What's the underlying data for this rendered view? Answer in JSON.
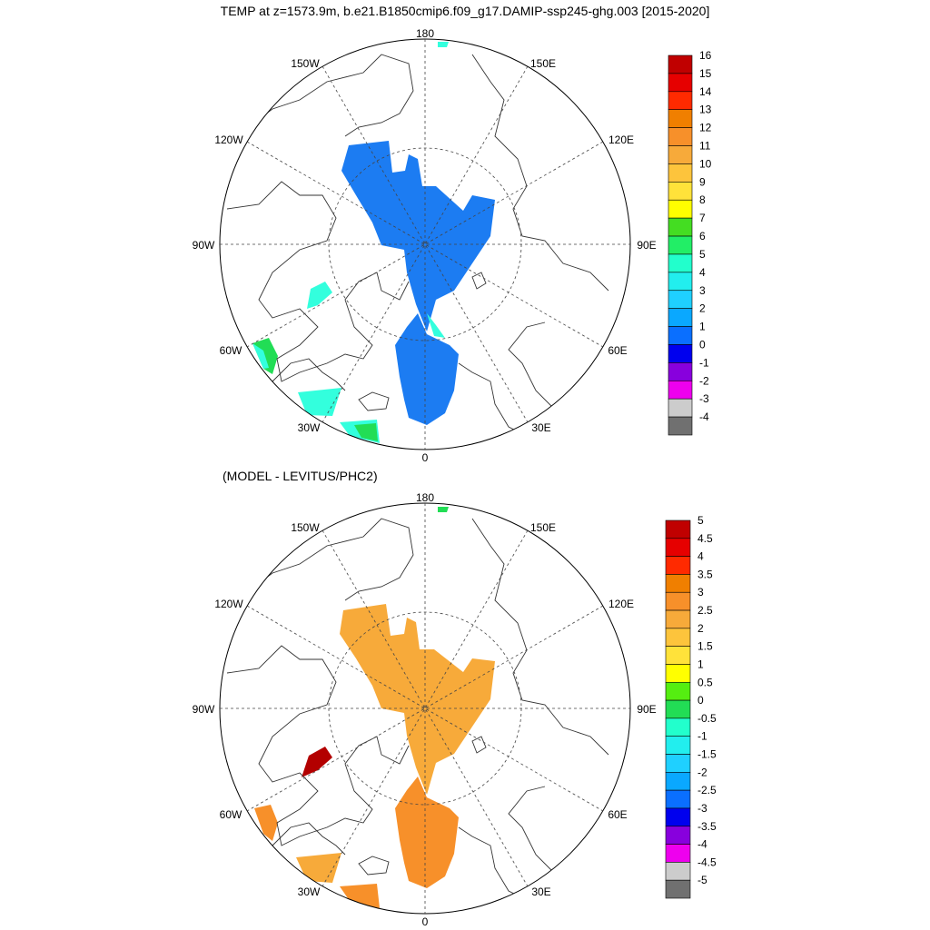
{
  "title": "TEMP at z=1573.9m, b.e21.B1850cmip6.f09_g17.DAMIP-ssp245-ghg.003 [2015-2020]",
  "subtitle": "(MODEL - LEVITUS/PHC2)",
  "map_labels": {
    "lon180": "180",
    "lon150w": "150W",
    "lon150e": "150E",
    "lon120w": "120W",
    "lon120e": "120E",
    "lon90w": "90W",
    "lon90e": "90E",
    "lon60w": "60W",
    "lon60e": "60E",
    "lon30w": "30W",
    "lon30e": "30E",
    "lon0": "0"
  },
  "top_colorbar": {
    "labels": [
      "16",
      "15",
      "14",
      "13",
      "12",
      "11",
      "10",
      "9",
      "8",
      "7",
      "6",
      "5",
      "4",
      "3",
      "2",
      "1",
      "0",
      "-1",
      "-2",
      "-3",
      "-4"
    ],
    "colors": [
      "#c00000",
      "#e60000",
      "#ff2a00",
      "#f07f00",
      "#f7902a",
      "#f7aa3a",
      "#fdc43c",
      "#ffe23a",
      "#ffff00",
      "#44dd22",
      "#22ee66",
      "#22ffcc",
      "#22eeee",
      "#1fd0ff",
      "#0aa8ff",
      "#0a6fff",
      "#0000ee",
      "#8800dd",
      "#ee00ee",
      "#cccccc",
      "#707070"
    ]
  },
  "bottom_colorbar": {
    "labels": [
      "5",
      "4.5",
      "4",
      "3.5",
      "3",
      "2.5",
      "2",
      "1.5",
      "1",
      "0.5",
      "0",
      "-0.5",
      "-1",
      "-1.5",
      "-2",
      "-2.5",
      "-3",
      "-3.5",
      "-4",
      "-4.5",
      "-5"
    ],
    "colors": [
      "#c00000",
      "#e60000",
      "#ff2a00",
      "#f07f00",
      "#f7902a",
      "#f7aa3a",
      "#fdc43c",
      "#ffe23a",
      "#ffff00",
      "#55ee11",
      "#22dd55",
      "#22ffcc",
      "#22eeee",
      "#1fd0ff",
      "#0aa8ff",
      "#0a6fff",
      "#0000ee",
      "#8800dd",
      "#ee00ee",
      "#cccccc",
      "#707070"
    ]
  },
  "fields": {
    "top_main_color": "#1c7cf2",
    "top_shelf_color": "#33ffdd",
    "top_green_color": "#22dd55",
    "bottom_main_color": "#f7aa3a",
    "bottom_south_color": "#f7902a",
    "bottom_red_color": "#b30000"
  }
}
